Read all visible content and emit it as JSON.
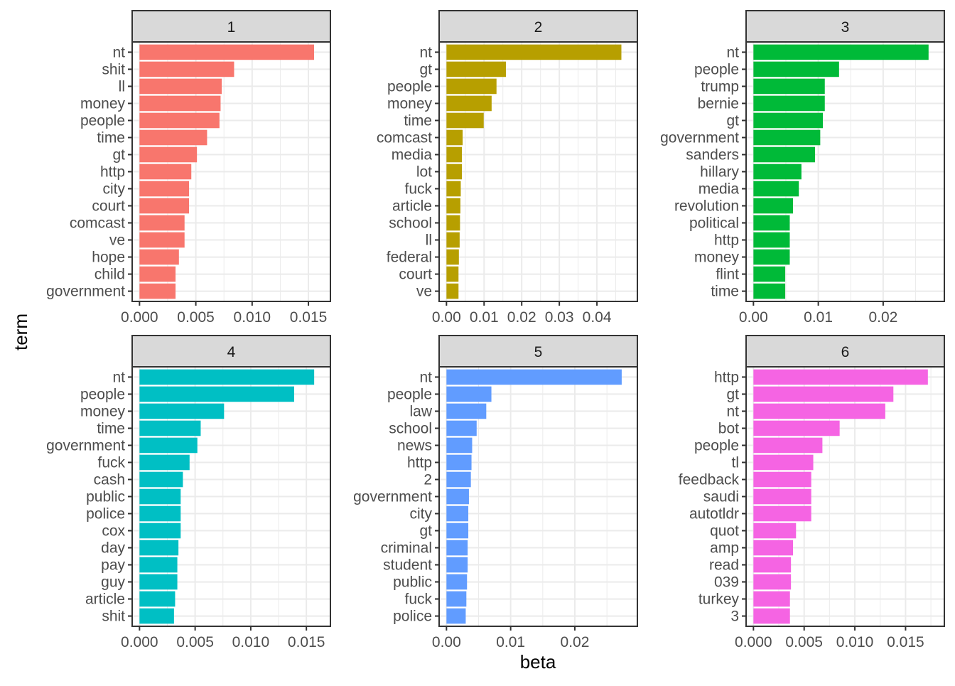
{
  "chart_data": {
    "type": "bar",
    "orientation": "horizontal",
    "facet": "wrap",
    "xlabel": "beta",
    "ylabel": "term",
    "grid": true,
    "legend": "none",
    "panels": [
      {
        "title": "1",
        "color": "#F8766D",
        "xlim": [
          0,
          0.0163
        ],
        "ticks": [
          "0.000",
          "0.005",
          "0.010",
          "0.015"
        ],
        "tick_values": [
          0,
          0.005,
          0.01,
          0.015
        ],
        "terms": [
          "nt",
          "shit",
          "ll",
          "money",
          "people",
          "time",
          "gt",
          "http",
          "city",
          "court",
          "comcast",
          "ve",
          "hope",
          "child",
          "government"
        ],
        "values": [
          0.0155,
          0.0084,
          0.0073,
          0.0072,
          0.0071,
          0.006,
          0.0051,
          0.0046,
          0.0044,
          0.0044,
          0.004,
          0.004,
          0.0035,
          0.0032,
          0.0032
        ]
      },
      {
        "title": "2",
        "color": "#B79F00",
        "xlim": [
          0,
          0.0488
        ],
        "ticks": [
          "0.00",
          "0.01",
          "0.02",
          "0.03",
          "0.04"
        ],
        "tick_values": [
          0,
          0.01,
          0.02,
          0.03,
          0.04
        ],
        "terms": [
          "nt",
          "gt",
          "people",
          "money",
          "time",
          "comcast",
          "media",
          "lot",
          "fuck",
          "article",
          "school",
          "ll",
          "federal",
          "court",
          "ve"
        ],
        "values": [
          0.0465,
          0.0158,
          0.0133,
          0.012,
          0.0099,
          0.0043,
          0.0041,
          0.0041,
          0.0038,
          0.0037,
          0.0036,
          0.0035,
          0.0033,
          0.0032,
          0.0032
        ]
      },
      {
        "title": "3",
        "color": "#00BA38",
        "xlim": [
          0,
          0.0283
        ],
        "ticks": [
          "0.00",
          "0.01",
          "0.02"
        ],
        "tick_values": [
          0,
          0.01,
          0.02
        ],
        "terms": [
          "nt",
          "people",
          "trump",
          "bernie",
          "gt",
          "government",
          "sanders",
          "hillary",
          "media",
          "revolution",
          "political",
          "http",
          "money",
          "flint",
          "time"
        ],
        "values": [
          0.027,
          0.0132,
          0.011,
          0.011,
          0.0107,
          0.0103,
          0.0095,
          0.0074,
          0.007,
          0.0061,
          0.0056,
          0.0056,
          0.0056,
          0.0049,
          0.0049
        ]
      },
      {
        "title": "4",
        "color": "#00BFC4",
        "xlim": [
          0,
          0.0165
        ],
        "ticks": [
          "0.000",
          "0.005",
          "0.010",
          "0.015"
        ],
        "tick_values": [
          0,
          0.005,
          0.01,
          0.015
        ],
        "terms": [
          "nt",
          "people",
          "money",
          "time",
          "government",
          "fuck",
          "cash",
          "public",
          "police",
          "cox",
          "day",
          "pay",
          "guy",
          "article",
          "shit"
        ],
        "values": [
          0.0157,
          0.0139,
          0.0076,
          0.0055,
          0.0052,
          0.0045,
          0.0039,
          0.0037,
          0.0037,
          0.0037,
          0.0035,
          0.0034,
          0.0034,
          0.0032,
          0.0031
        ]
      },
      {
        "title": "5",
        "color": "#619CFF",
        "xlim": [
          0,
          0.0286
        ],
        "ticks": [
          "0.00",
          "0.01",
          "0.02"
        ],
        "tick_values": [
          0,
          0.01,
          0.02
        ],
        "terms": [
          "nt",
          "people",
          "law",
          "school",
          "news",
          "http",
          "2",
          "government",
          "city",
          "gt",
          "criminal",
          "student",
          "public",
          "fuck",
          "police"
        ],
        "values": [
          0.0273,
          0.007,
          0.0062,
          0.0047,
          0.004,
          0.0039,
          0.0038,
          0.0035,
          0.0034,
          0.0034,
          0.0033,
          0.0033,
          0.0032,
          0.0031,
          0.003
        ]
      },
      {
        "title": "6",
        "color": "#F564E3",
        "xlim": [
          0,
          0.0181
        ],
        "ticks": [
          "0.000",
          "0.005",
          "0.010",
          "0.015"
        ],
        "tick_values": [
          0,
          0.005,
          0.01,
          0.015
        ],
        "terms": [
          "http",
          "gt",
          "nt",
          "bot",
          "people",
          "tl",
          "feedback",
          "saudi",
          "autotldr",
          "quot",
          "amp",
          "read",
          "039",
          "turkey",
          "3"
        ],
        "values": [
          0.0172,
          0.0138,
          0.013,
          0.0085,
          0.0068,
          0.0059,
          0.0057,
          0.0057,
          0.0057,
          0.0042,
          0.0039,
          0.0037,
          0.0037,
          0.0036,
          0.0036
        ]
      }
    ]
  }
}
